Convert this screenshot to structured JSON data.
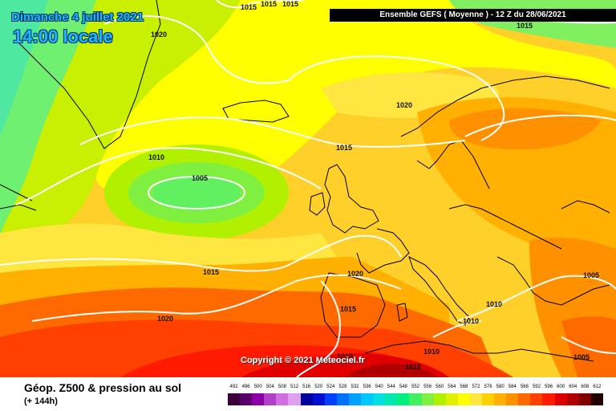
{
  "header": {
    "date": "Dimanche 4 juillet 2021",
    "time": "14:00 locale",
    "run_info": "Ensemble GEFS  ( Moyenne )  - 12 Z du 28/06/2021"
  },
  "copyright": "Copyright © 2021 Meteociel.fr",
  "legend": {
    "title": "Géop. Z500 & pression au sol",
    "subtitle": "(+ 144h)",
    "ticks": [
      "492",
      "496",
      "500",
      "504",
      "508",
      "512",
      "516",
      "520",
      "524",
      "528",
      "532",
      "536",
      "540",
      "544",
      "548",
      "552",
      "556",
      "560",
      "564",
      "568",
      "572",
      "576",
      "580",
      "584",
      "588",
      "592",
      "596",
      "600",
      "604",
      "608",
      "612"
    ],
    "colors": [
      "#3a003a",
      "#5a006a",
      "#8a00a6",
      "#b040c8",
      "#d070e0",
      "#e0a0f0",
      "#0000a0",
      "#0010d0",
      "#0040ff",
      "#0070ff",
      "#00a0ff",
      "#00c8ff",
      "#00e0e0",
      "#00e8b0",
      "#00f080",
      "#40f060",
      "#80f040",
      "#b0f000",
      "#e0f000",
      "#ffff00",
      "#ffe640",
      "#ffd000",
      "#ffb000",
      "#ff9000",
      "#ff6a00",
      "#ff4000",
      "#ff1a00",
      "#e00000",
      "#b00000",
      "#800000",
      "#200000"
    ]
  },
  "isobars": [
    {
      "value": "1015",
      "where": "top-center-1"
    },
    {
      "value": "1015",
      "where": "top-center-2"
    },
    {
      "value": "1015",
      "where": "top-center-3"
    },
    {
      "value": "1015",
      "where": "top-right"
    },
    {
      "value": "1020",
      "where": "greenland"
    },
    {
      "value": "1020",
      "where": "north-sea"
    },
    {
      "value": "1015",
      "where": "norway-sea"
    },
    {
      "value": "1010",
      "where": "mid-atlantic"
    },
    {
      "value": "1005",
      "where": "low-center"
    },
    {
      "value": "1015",
      "where": "south-atlantic"
    },
    {
      "value": "1020",
      "where": "biscay"
    },
    {
      "value": "1020",
      "where": "azores"
    },
    {
      "value": "1015",
      "where": "iberia"
    },
    {
      "value": "1010",
      "where": "sardinia"
    },
    {
      "value": "1010",
      "where": "italy"
    },
    {
      "value": "1010",
      "where": "algeria"
    },
    {
      "value": "1010",
      "where": "north-africa"
    },
    {
      "value": "1010",
      "where": "libya"
    },
    {
      "value": "1005",
      "where": "east-med"
    },
    {
      "value": "1005",
      "where": "black-sea"
    }
  ]
}
